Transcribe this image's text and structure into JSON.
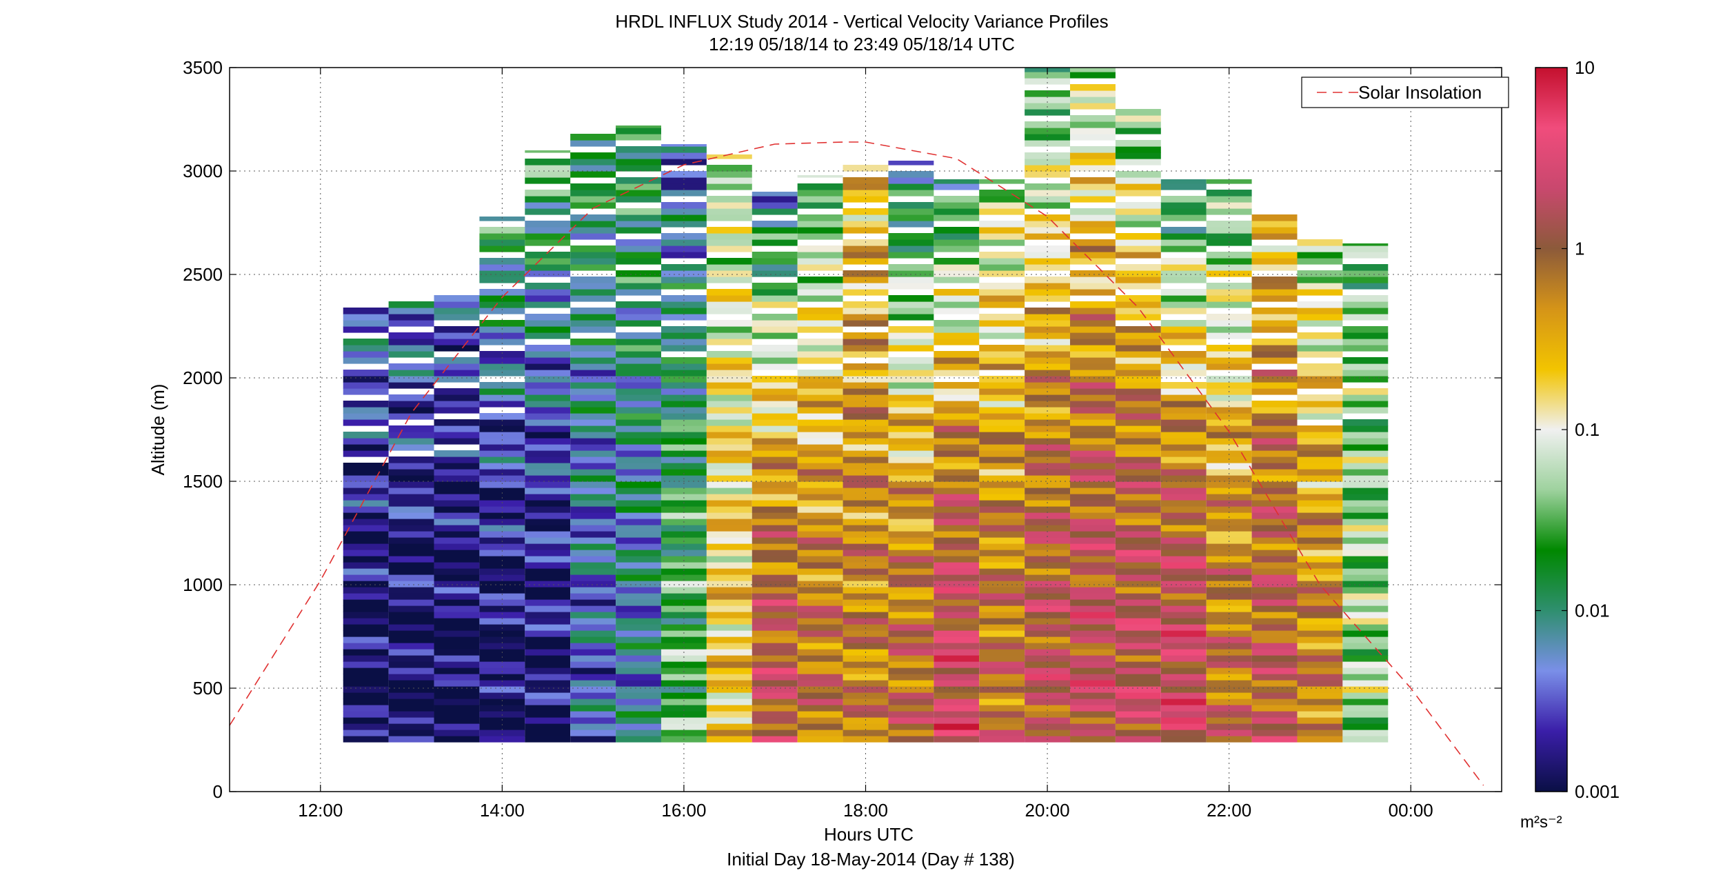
{
  "figure": {
    "title_line1": "HRDL INFLUX Study 2014 - Vertical Velocity Variance Profiles",
    "title_line2": "12:19 05/18/14 to 23:49 05/18/14  UTC",
    "xlabel": "Hours UTC",
    "subtitle": "Initial Day 18-May-2014 (Day # 138)",
    "ylabel": "Altitude (m)",
    "legend_label": "Solar Insolation",
    "colorbar_unit": "m²s⁻²"
  },
  "chart_data": {
    "type": "heatmap",
    "title": "HRDL INFLUX Study 2014 - Vertical Velocity Variance Profiles",
    "subtitle": "12:19 05/18/14 to 23:49 05/18/14  UTC",
    "xlabel": "Hours UTC",
    "ylabel": "Altitude (m)",
    "x_ticks": [
      "12:00",
      "14:00",
      "16:00",
      "18:00",
      "20:00",
      "22:00",
      "00:00"
    ],
    "x_tick_hours": [
      12,
      14,
      16,
      18,
      20,
      22,
      24
    ],
    "xlim_hours": [
      11.0,
      25.0
    ],
    "y_ticks": [
      0,
      500,
      1000,
      1500,
      2000,
      2500,
      3000,
      3500
    ],
    "ylim": [
      0,
      3500
    ],
    "grid": true,
    "legend_position": "top-right",
    "colorbar": {
      "scale": "log",
      "range": [
        0.001,
        10
      ],
      "ticks": [
        10,
        1,
        0.1,
        0.01,
        0.001
      ],
      "tick_labels": [
        "10",
        "1",
        "0.1",
        "0.01",
        "0.001"
      ],
      "unit": "m²s⁻²",
      "stops": [
        "#0a0f45",
        "#3a1ea8",
        "#7a8fe8",
        "#2f8f6f",
        "#008800",
        "#9ed29e",
        "#f0f0f0",
        "#f2c400",
        "#d59418",
        "#8c5a3a",
        "#c9486e",
        "#f04c7c",
        "#c4102e"
      ]
    },
    "profiles": [
      {
        "hour": 12.5,
        "top_m": 2350,
        "mean": 0.0011,
        "top_var": 0.006
      },
      {
        "hour": 13.0,
        "top_m": 2400,
        "mean": 0.0011,
        "top_var": 0.006
      },
      {
        "hour": 13.5,
        "top_m": 2400,
        "mean": 0.0011,
        "top_var": 0.004
      },
      {
        "hour": 14.0,
        "top_m": 2780,
        "mean": 0.0012,
        "top_var": 0.02
      },
      {
        "hour": 14.5,
        "top_m": 3100,
        "mean": 0.0013,
        "top_var": 0.03
      },
      {
        "hour": 15.0,
        "top_m": 3180,
        "mean": 0.004,
        "top_var": 0.02
      },
      {
        "hour": 15.5,
        "top_m": 3220,
        "mean": 0.006,
        "top_var": 0.02
      },
      {
        "hour": 16.0,
        "top_m": 3130,
        "mean": 0.03,
        "top_var": 0.003
      },
      {
        "hour": 16.5,
        "top_m": 3080,
        "mean": 0.2,
        "top_var": 0.05
      },
      {
        "hour": 17.0,
        "top_m": 2900,
        "mean": 1.5,
        "top_var": 0.005
      },
      {
        "hour": 17.5,
        "top_m": 2980,
        "mean": 0.8,
        "top_var": 0.02
      },
      {
        "hour": 18.0,
        "top_m": 3030,
        "mean": 0.6,
        "top_var": 0.2
      },
      {
        "hour": 18.5,
        "top_m": 3050,
        "mean": 0.9,
        "top_var": 0.006
      },
      {
        "hour": 19.0,
        "top_m": 2960,
        "mean": 2.5,
        "top_var": 0.01
      },
      {
        "hour": 19.5,
        "top_m": 2960,
        "mean": 0.8,
        "top_var": 0.05
      },
      {
        "hour": 20.0,
        "top_m": 3500,
        "mean": 1.5,
        "top_var": 0.02
      },
      {
        "hour": 20.5,
        "top_m": 3500,
        "mean": 1.8,
        "top_var": 0.05
      },
      {
        "hour": 21.0,
        "top_m": 3300,
        "mean": 1.8,
        "top_var": 0.03
      },
      {
        "hour": 21.5,
        "top_m": 2960,
        "mean": 2.5,
        "top_var": 0.01
      },
      {
        "hour": 22.0,
        "top_m": 2960,
        "mean": 0.8,
        "top_var": 0.02
      },
      {
        "hour": 22.5,
        "top_m": 2820,
        "mean": 1.2,
        "top_var": 0.2
      },
      {
        "hour": 23.0,
        "top_m": 2700,
        "mean": 0.6,
        "top_var": 0.05
      },
      {
        "hour": 23.5,
        "top_m": 2650,
        "mean": 0.05,
        "top_var": 0.03
      }
    ],
    "series": [
      {
        "name": "Solar Insolation",
        "style": "red dashed line",
        "color": "#e03030",
        "x_hours": [
          11.0,
          12.0,
          13.0,
          14.0,
          15.0,
          16.0,
          17.0,
          17.75,
          18.0,
          19.0,
          20.0,
          21.0,
          22.0,
          23.0,
          24.0,
          24.8
        ],
        "y_altitude_m": [
          320,
          1020,
          1830,
          2390,
          2820,
          3030,
          3130,
          3140,
          3140,
          3060,
          2780,
          2340,
          1740,
          1000,
          500,
          30
        ]
      }
    ]
  }
}
